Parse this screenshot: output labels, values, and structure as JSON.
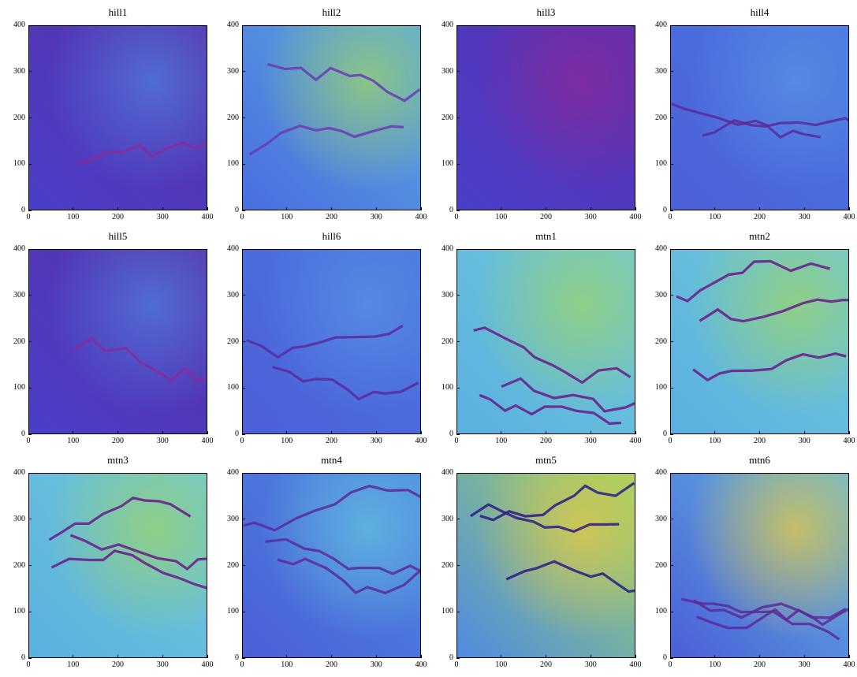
{
  "colorscale": [
    "#5a2a82",
    "#7a2fb0",
    "#4a4fd8",
    "#4f86e6",
    "#63c0e0",
    "#9bd36a",
    "#e6c940"
  ],
  "axis": {
    "x_ticks": [
      "0",
      "100",
      "200",
      "300",
      "400"
    ],
    "y_ticks": [
      "0",
      "100",
      "200",
      "300",
      "400"
    ],
    "xlim": [
      0,
      400
    ],
    "ylim": [
      0,
      400
    ]
  },
  "panels": [
    {
      "title": "hill1",
      "style": "low-purple"
    },
    {
      "title": "hill2",
      "style": "medium-cyan"
    },
    {
      "title": "hill3",
      "style": "low-purple-gradient"
    },
    {
      "title": "hill4",
      "style": "low-blue"
    },
    {
      "title": "hill5",
      "style": "low-purple"
    },
    {
      "title": "hill6",
      "style": "low-blue"
    },
    {
      "title": "mtn1",
      "style": "high-cyan-river"
    },
    {
      "title": "mtn2",
      "style": "high-cyan-river"
    },
    {
      "title": "mtn3",
      "style": "high-cyan-river"
    },
    {
      "title": "mtn4",
      "style": "medium-blue"
    },
    {
      "title": "mtn5",
      "style": "high-yellow"
    },
    {
      "title": "mtn6",
      "style": "medium-blue-yellow"
    }
  ]
}
